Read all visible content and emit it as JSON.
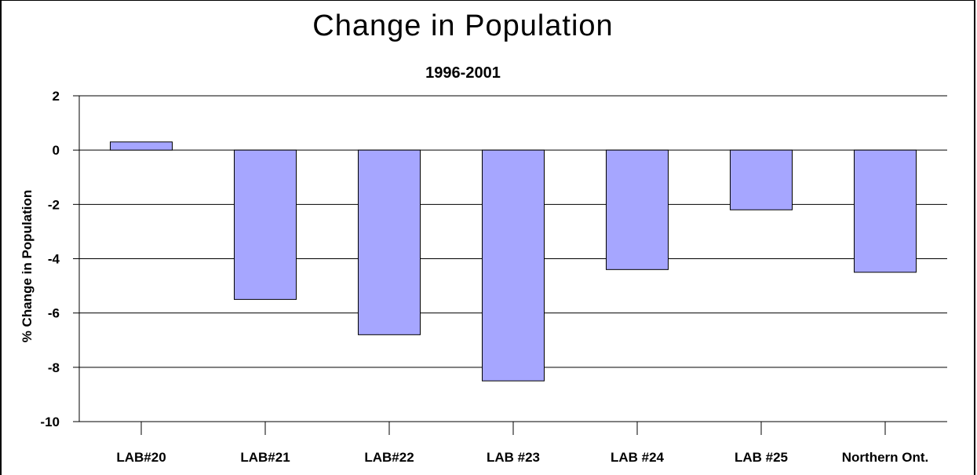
{
  "chart_data": {
    "type": "bar",
    "title": "Change in Population",
    "subtitle": "1996-2001",
    "ylabel": "% Change in Population",
    "xlabel": "",
    "categories": [
      "LAB#20",
      "LAB#21",
      "LAB#22",
      "LAB #23",
      "LAB #24",
      "LAB #25",
      "Northern Ont."
    ],
    "values": [
      0.3,
      -5.5,
      -6.8,
      -8.5,
      -4.4,
      -2.2,
      -4.5
    ],
    "ylim": [
      -10,
      2
    ],
    "yticks": [
      2,
      0,
      -2,
      -4,
      -6,
      -8,
      -10
    ],
    "grid": true,
    "legend": "none",
    "bar_color": "#a6a6ff",
    "bar_edge_color": "#000000"
  }
}
